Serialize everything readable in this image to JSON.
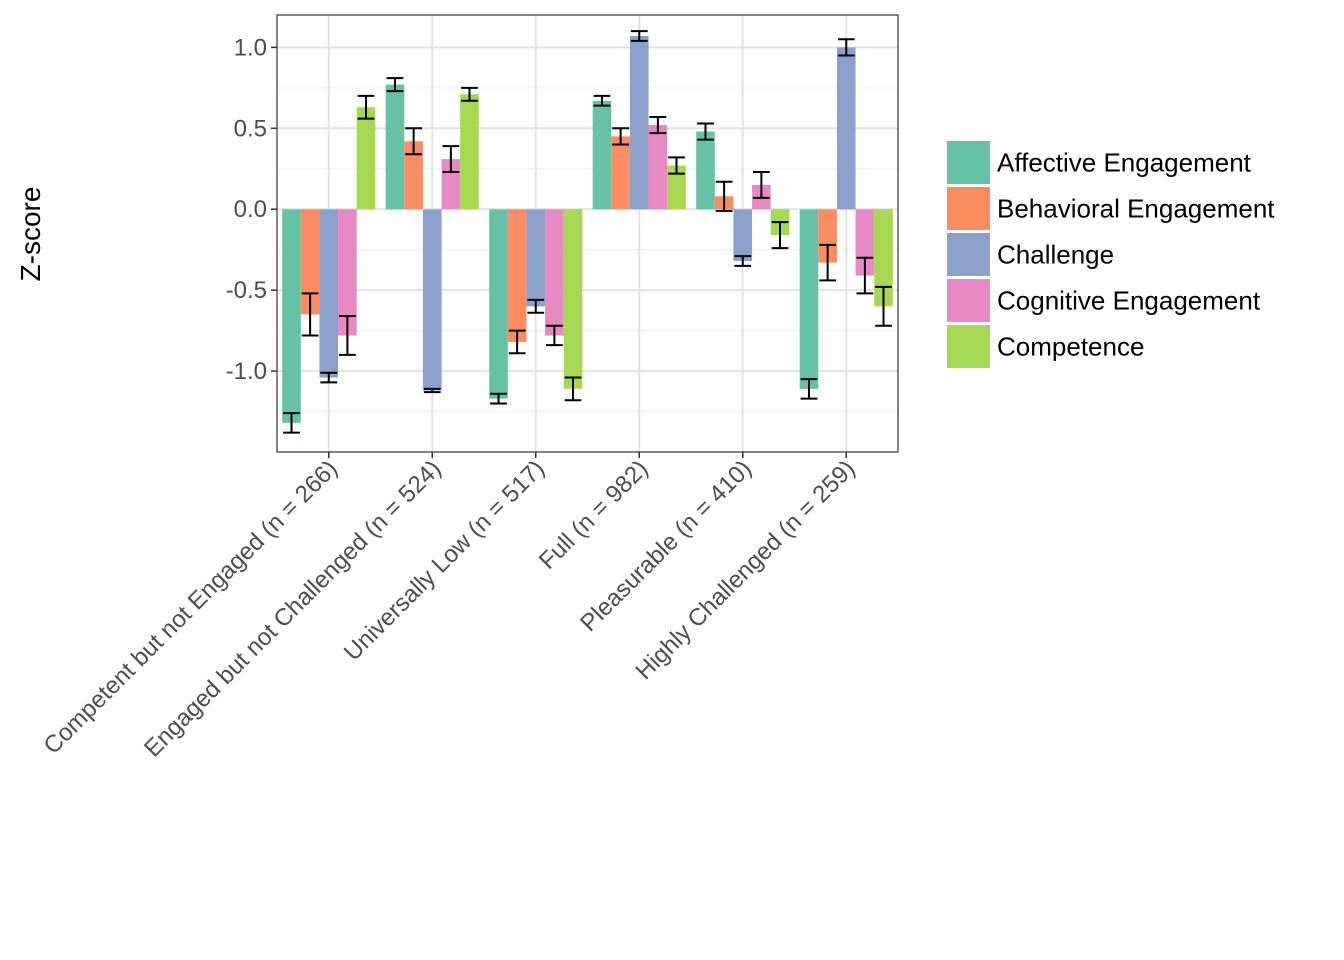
{
  "chart_data": {
    "type": "bar",
    "title": "",
    "xlabel": "",
    "ylabel": "Z-score",
    "ylim": [
      -1.5,
      1.2
    ],
    "yticks": [
      1.0,
      0.5,
      0.0,
      -0.5,
      -1.0
    ],
    "ytick_labels": [
      "1.0",
      "0.5",
      "0.0",
      "-0.5",
      "-1.0"
    ],
    "grid": true,
    "legend_position": "right",
    "categories": [
      "Competent but not Engaged (n = 266)",
      "Engaged but not Challenged (n = 524)",
      "Universally Low (n = 517)",
      "Full (n = 982)",
      "Pleasurable (n = 410)",
      "Highly Challenged (n = 259)"
    ],
    "series": [
      {
        "name": "Affective Engagement",
        "color": "#66c2a5",
        "values": [
          -1.32,
          0.77,
          -1.17,
          0.67,
          0.48,
          -1.11
        ],
        "errors": [
          0.06,
          0.04,
          0.03,
          0.03,
          0.05,
          0.06
        ]
      },
      {
        "name": "Behavioral Engagement",
        "color": "#fc8d62",
        "values": [
          -0.65,
          0.42,
          -0.82,
          0.45,
          0.08,
          -0.33
        ],
        "errors": [
          0.13,
          0.08,
          0.07,
          0.05,
          0.09,
          0.11
        ]
      },
      {
        "name": "Challenge",
        "color": "#8da0cb",
        "values": [
          -1.04,
          -1.12,
          -0.6,
          1.07,
          -0.32,
          1.0
        ],
        "errors": [
          0.03,
          0.01,
          0.04,
          0.03,
          0.03,
          0.05
        ]
      },
      {
        "name": "Cognitive Engagement",
        "color": "#e78ac3",
        "values": [
          -0.78,
          0.31,
          -0.78,
          0.52,
          0.15,
          -0.41
        ],
        "errors": [
          0.12,
          0.08,
          0.06,
          0.05,
          0.08,
          0.11
        ]
      },
      {
        "name": "Competence",
        "color": "#a6d854",
        "values": [
          0.63,
          0.71,
          -1.11,
          0.27,
          -0.16,
          -0.6
        ],
        "errors": [
          0.07,
          0.04,
          0.07,
          0.05,
          0.08,
          0.12
        ]
      }
    ]
  }
}
